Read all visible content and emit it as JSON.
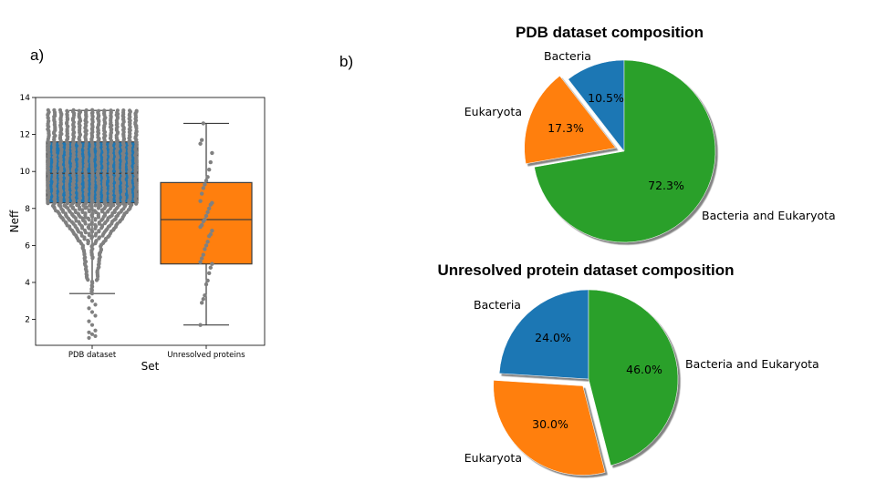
{
  "panel_labels": {
    "a": "a)",
    "b": "b)"
  },
  "chart_data": [
    {
      "type": "box",
      "title": "",
      "xlabel": "Set",
      "ylabel": "Neff",
      "categories": [
        "PDB dataset",
        "Unresolved proteins"
      ],
      "ylim": [
        0.6,
        14
      ],
      "yticks": [
        2,
        4,
        6,
        8,
        10,
        12,
        14
      ],
      "grid": false,
      "boxes": [
        {
          "name": "PDB dataset",
          "color": "#1f77b4",
          "whisker_low": 3.4,
          "q1": 8.3,
          "median": 9.9,
          "q3": 11.6,
          "whisker_high": 13.3
        },
        {
          "name": "Unresolved proteins",
          "color": "#ff7f0e",
          "whisker_low": 1.7,
          "q1": 5.0,
          "median": 7.4,
          "q3": 9.4,
          "whisker_high": 12.6
        }
      ],
      "swarm": {
        "color": "#808080",
        "pdb_outliers": [
          3.2,
          3.0,
          2.8,
          2.6,
          2.4,
          2.2,
          1.9,
          1.7,
          1.4,
          1.3,
          1.2,
          1.1,
          1.0
        ],
        "unresolved_points": [
          1.7,
          2.9,
          3.1,
          3.3,
          3.9,
          4.1,
          4.5,
          4.8,
          5.0,
          5.1,
          5.3,
          5.5,
          5.8,
          6.0,
          6.2,
          6.5,
          6.6,
          6.8,
          7.0,
          7.1,
          7.3,
          7.4,
          7.6,
          7.8,
          8.0,
          8.2,
          8.3,
          8.4,
          8.8,
          9.1,
          9.3,
          9.5,
          9.7,
          10.1,
          10.5,
          11.0,
          11.5,
          11.7,
          12.6
        ]
      }
    },
    {
      "type": "pie",
      "title": "PDB dataset composition",
      "start_angle": 90,
      "slices": [
        {
          "label": "Bacteria",
          "value": 10.5,
          "pct": "10.5%",
          "color": "#1f77b4",
          "explode": 0
        },
        {
          "label": "Eukaryota",
          "value": 17.3,
          "pct": "17.3%",
          "color": "#ff7f0e",
          "explode": 0.1
        },
        {
          "label": "Bacteria and Eukaryota",
          "value": 72.3,
          "pct": "72.3%",
          "color": "#2ca02c",
          "explode": 0
        }
      ]
    },
    {
      "type": "pie",
      "title": "Unresolved protein dataset composition",
      "start_angle": 90,
      "slices": [
        {
          "label": "Bacteria",
          "value": 24.0,
          "pct": "24.0%",
          "color": "#1f77b4",
          "explode": 0
        },
        {
          "label": "Eukaryota",
          "value": 30.0,
          "pct": "30.0%",
          "color": "#ff7f0e",
          "explode": 0.1
        },
        {
          "label": "Bacteria and Eukaryota",
          "value": 46.0,
          "pct": "46.0%",
          "color": "#2ca02c",
          "explode": 0
        }
      ]
    }
  ]
}
